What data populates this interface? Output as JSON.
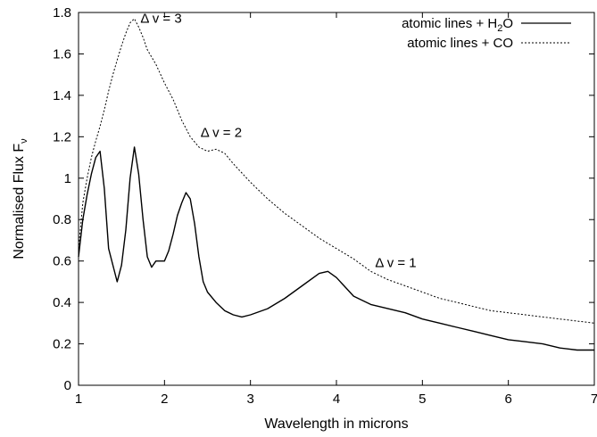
{
  "chart_data": {
    "type": "line",
    "xlabel": "Wavelength in microns",
    "ylabel": "Normalised Flux F",
    "ylabel_sub": "ν",
    "xlim": [
      1,
      7
    ],
    "ylim": [
      0,
      1.8
    ],
    "x_ticks": [
      1,
      2,
      3,
      4,
      5,
      6,
      7
    ],
    "y_ticks": [
      0,
      0.2,
      0.4,
      0.6,
      0.8,
      1,
      1.2,
      1.4,
      1.6,
      1.8
    ],
    "y_tick_labels": [
      "0",
      "0.2",
      "0.4",
      "0.6",
      "0.8",
      "1",
      "1.2",
      "1.4",
      "1.6",
      "1.8"
    ],
    "legend_position": "top-right",
    "grid": false,
    "series": [
      {
        "name": "atomic lines + H",
        "name_sub": "2",
        "name_suffix": "O",
        "style": "solid",
        "color": "#000000",
        "x": [
          1.0,
          1.05,
          1.1,
          1.15,
          1.2,
          1.25,
          1.3,
          1.35,
          1.4,
          1.45,
          1.5,
          1.55,
          1.6,
          1.65,
          1.7,
          1.75,
          1.8,
          1.85,
          1.9,
          1.95,
          2.0,
          2.05,
          2.1,
          2.15,
          2.2,
          2.25,
          2.3,
          2.35,
          2.4,
          2.45,
          2.5,
          2.6,
          2.7,
          2.8,
          2.9,
          3.0,
          3.2,
          3.4,
          3.6,
          3.8,
          3.9,
          4.0,
          4.2,
          4.4,
          4.6,
          4.8,
          5.0,
          5.2,
          5.4,
          5.6,
          5.8,
          6.0,
          6.2,
          6.4,
          6.6,
          6.8,
          7.0
        ],
        "y": [
          0.62,
          0.8,
          0.92,
          1.02,
          1.1,
          1.13,
          0.95,
          0.66,
          0.58,
          0.5,
          0.58,
          0.75,
          1.0,
          1.15,
          1.02,
          0.8,
          0.62,
          0.57,
          0.6,
          0.6,
          0.6,
          0.65,
          0.73,
          0.82,
          0.88,
          0.93,
          0.9,
          0.78,
          0.62,
          0.5,
          0.45,
          0.4,
          0.36,
          0.34,
          0.33,
          0.34,
          0.37,
          0.42,
          0.48,
          0.54,
          0.55,
          0.52,
          0.43,
          0.39,
          0.37,
          0.35,
          0.32,
          0.3,
          0.28,
          0.26,
          0.24,
          0.22,
          0.21,
          0.2,
          0.18,
          0.17,
          0.17
        ]
      },
      {
        "name": "atomic lines + CO",
        "style": "dotted",
        "color": "#000000",
        "x": [
          1.0,
          1.05,
          1.1,
          1.15,
          1.2,
          1.25,
          1.3,
          1.35,
          1.4,
          1.45,
          1.5,
          1.55,
          1.6,
          1.65,
          1.7,
          1.75,
          1.8,
          1.9,
          2.0,
          2.1,
          2.2,
          2.3,
          2.4,
          2.5,
          2.6,
          2.7,
          2.8,
          3.0,
          3.2,
          3.4,
          3.6,
          3.8,
          4.0,
          4.2,
          4.3,
          4.4,
          4.6,
          4.8,
          5.0,
          5.2,
          5.4,
          5.6,
          5.8,
          6.0,
          6.2,
          6.4,
          6.6,
          6.8,
          7.0
        ],
        "y": [
          0.66,
          0.88,
          1.0,
          1.1,
          1.18,
          1.25,
          1.33,
          1.42,
          1.5,
          1.57,
          1.64,
          1.7,
          1.75,
          1.77,
          1.73,
          1.68,
          1.62,
          1.55,
          1.46,
          1.38,
          1.28,
          1.2,
          1.15,
          1.13,
          1.14,
          1.12,
          1.07,
          0.98,
          0.9,
          0.83,
          0.77,
          0.71,
          0.66,
          0.61,
          0.58,
          0.55,
          0.51,
          0.48,
          0.45,
          0.42,
          0.4,
          0.38,
          0.36,
          0.35,
          0.34,
          0.33,
          0.32,
          0.31,
          0.3
        ]
      }
    ],
    "annotations": [
      {
        "text": "Δ v = 3",
        "x": 1.72,
        "y": 1.75
      },
      {
        "text": "Δ v = 2",
        "x": 2.42,
        "y": 1.2
      },
      {
        "text": "Δ v = 1",
        "x": 4.45,
        "y": 0.57
      }
    ]
  }
}
